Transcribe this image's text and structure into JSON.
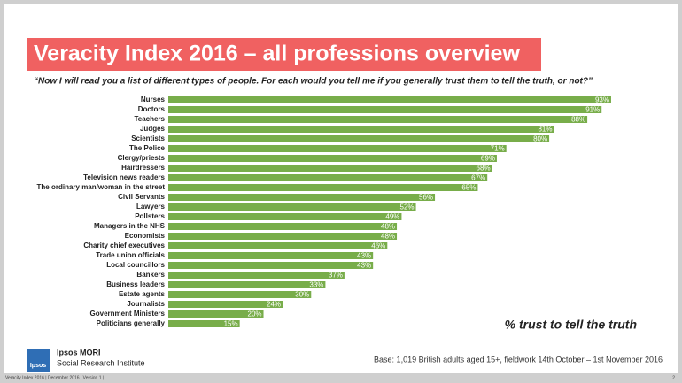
{
  "chart_data": {
    "type": "bar",
    "title": "Veracity Index 2016 – all professions overview",
    "subtitle": "“Now I will read you a list of different types of people. For each would you tell me if you generally trust them to tell the truth, or not?”",
    "categories": [
      "Nurses",
      "Doctors",
      "Teachers",
      "Judges",
      "Scientists",
      "The Police",
      "Clergy/priests",
      "Hairdressers",
      "Television news readers",
      "The ordinary man/woman in the street",
      "Civil Servants",
      "Lawyers",
      "Pollsters",
      "Managers in the NHS",
      "Economists",
      "Charity chief executives",
      "Trade union officials",
      "Local councillors",
      "Bankers",
      "Business leaders",
      "Estate agents",
      "Journalists",
      "Government Ministers",
      "Politicians generally"
    ],
    "values": [
      93,
      91,
      88,
      81,
      80,
      71,
      69,
      68,
      67,
      65,
      56,
      52,
      49,
      48,
      48,
      46,
      43,
      43,
      37,
      33,
      30,
      24,
      20,
      15
    ],
    "value_labels": [
      "93%",
      "91%",
      "88%",
      "81%",
      "80%",
      "71%",
      "69%",
      "68%",
      "67%",
      "65%",
      "56%",
      "52%",
      "49%",
      "48%",
      "48%",
      "46%",
      "43%",
      "43%",
      "37%",
      "33%",
      "30%",
      "24%",
      "20%",
      "15%"
    ],
    "color": "#78ad4a",
    "annotation": "% trust to tell the truth",
    "base_note": "Base: 1,019 British adults aged 15+, fieldwork 14th October – 1st November 2016"
  },
  "branding": {
    "logo": "Ipsos",
    "company": "Ipsos MORI",
    "division": "Social Research Institute"
  },
  "footer": {
    "left": "Veracity Index 2016 | December 2016 | Version 1 |",
    "page": "2"
  }
}
